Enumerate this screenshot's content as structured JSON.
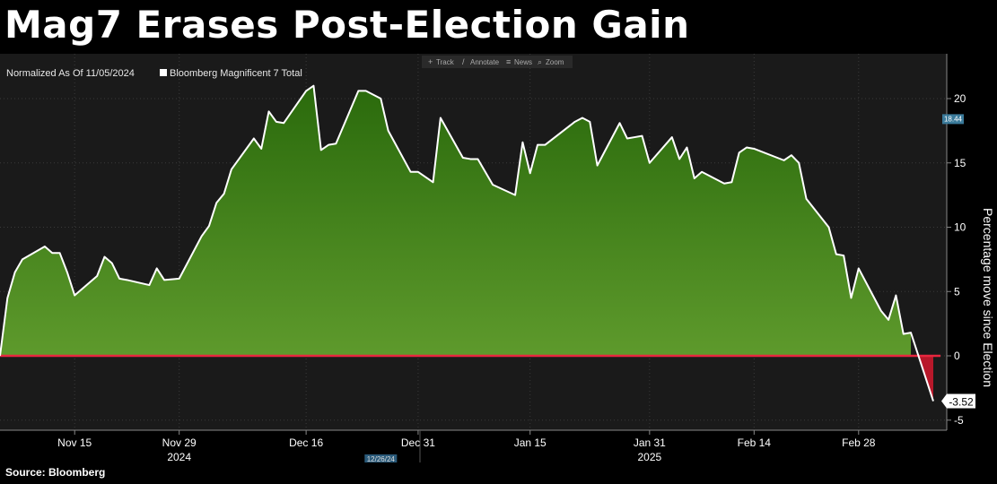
{
  "headline": "Mag7 Erases Post-Election Gain",
  "source": "Source: Bloomberg",
  "toolbar": [
    {
      "icon": "track-icon",
      "label": "Track"
    },
    {
      "icon": "annotate-icon",
      "label": "Annotate"
    },
    {
      "icon": "news-icon",
      "label": "News"
    },
    {
      "icon": "zoom-icon",
      "label": "Zoom"
    }
  ],
  "colors": {
    "background": "#000000",
    "plot_background": "#1a1a1a",
    "area_top": "#2a6a0c",
    "area_bottom": "#5e9a2c",
    "negative_fill": "#b8182a",
    "zero_line": "#e8273f",
    "series_line": "#ffffff"
  },
  "chart_data": {
    "type": "area",
    "title": "Mag7 Erases Post-Election Gain",
    "subtitle": "Normalized As Of 11/05/2024",
    "ylabel": "Percentage move since Election",
    "ylim": [
      -5.5,
      23
    ],
    "yticks": [
      -5,
      0,
      5,
      10,
      15,
      20
    ],
    "y_axis_side": "right",
    "grid": true,
    "legend_position": "top-left",
    "xlim": [
      "2024-11-05",
      "2025-03-10"
    ],
    "xticks": [
      {
        "date": "2024-11-15",
        "label": "Nov 15"
      },
      {
        "date": "2024-11-29",
        "label": "Nov 29"
      },
      {
        "date": "2024-12-16",
        "label": "Dec 16"
      },
      {
        "date": "2024-12-31",
        "label": "Dec 31"
      },
      {
        "date": "2025-01-15",
        "label": "Jan 15"
      },
      {
        "date": "2025-01-31",
        "label": "Jan 31"
      },
      {
        "date": "2025-02-14",
        "label": "Feb 14"
      },
      {
        "date": "2025-02-28",
        "label": "Feb 28"
      }
    ],
    "year_labels": [
      {
        "date": "2024-11-29",
        "label": "2024"
      },
      {
        "date": "2025-01-31",
        "label": "2025"
      }
    ],
    "cursor_label": {
      "date": "2024-12-26",
      "label": "12/26/24"
    },
    "series": [
      {
        "name": "Bloomberg Magnificent 7 Total",
        "x": [
          "2024-11-05",
          "2024-11-06",
          "2024-11-07",
          "2024-11-08",
          "2024-11-11",
          "2024-11-12",
          "2024-11-13",
          "2024-11-14",
          "2024-11-15",
          "2024-11-18",
          "2024-11-19",
          "2024-11-20",
          "2024-11-21",
          "2024-11-22",
          "2024-11-25",
          "2024-11-26",
          "2024-11-27",
          "2024-11-29",
          "2024-12-02",
          "2024-12-03",
          "2024-12-04",
          "2024-12-05",
          "2024-12-06",
          "2024-12-09",
          "2024-12-10",
          "2024-12-11",
          "2024-12-12",
          "2024-12-13",
          "2024-12-16",
          "2024-12-17",
          "2024-12-18",
          "2024-12-19",
          "2024-12-20",
          "2024-12-23",
          "2024-12-24",
          "2024-12-26",
          "2024-12-27",
          "2024-12-30",
          "2024-12-31",
          "2025-01-02",
          "2025-01-03",
          "2025-01-06",
          "2025-01-07",
          "2025-01-08",
          "2025-01-10",
          "2025-01-13",
          "2025-01-14",
          "2025-01-15",
          "2025-01-16",
          "2025-01-17",
          "2025-01-21",
          "2025-01-22",
          "2025-01-23",
          "2025-01-24",
          "2025-01-27",
          "2025-01-28",
          "2025-01-29",
          "2025-01-30",
          "2025-01-31",
          "2025-02-03",
          "2025-02-04",
          "2025-02-05",
          "2025-02-06",
          "2025-02-07",
          "2025-02-10",
          "2025-02-11",
          "2025-02-12",
          "2025-02-13",
          "2025-02-14",
          "2025-02-18",
          "2025-02-19",
          "2025-02-20",
          "2025-02-21",
          "2025-02-24",
          "2025-02-25",
          "2025-02-26",
          "2025-02-27",
          "2025-02-28",
          "2025-03-03",
          "2025-03-04",
          "2025-03-05",
          "2025-03-06",
          "2025-03-07",
          "2025-03-10"
        ],
        "values": [
          0.0,
          4.5,
          6.5,
          7.5,
          8.5,
          8.0,
          8.0,
          6.5,
          4.7,
          6.2,
          7.7,
          7.2,
          6.0,
          5.9,
          5.5,
          6.8,
          5.9,
          6.0,
          9.3,
          10.1,
          11.9,
          12.6,
          14.5,
          16.9,
          16.1,
          19.0,
          18.2,
          18.1,
          20.6,
          21.0,
          16.0,
          16.4,
          16.5,
          20.6,
          20.6,
          20.0,
          17.5,
          14.3,
          14.3,
          13.5,
          18.5,
          15.4,
          15.3,
          15.3,
          13.3,
          12.5,
          16.6,
          14.2,
          16.4,
          16.4,
          18.2,
          18.5,
          18.2,
          14.8,
          18.1,
          16.9,
          17.0,
          17.1,
          15.0,
          17.0,
          15.3,
          16.2,
          13.8,
          14.3,
          13.4,
          13.5,
          15.8,
          16.2,
          16.1,
          15.2,
          15.6,
          15.0,
          12.2,
          10.0,
          7.9,
          7.8,
          4.5,
          6.8,
          3.5,
          2.8,
          4.7,
          1.7,
          1.8,
          -3.52
        ]
      }
    ],
    "annotations": [
      {
        "text": "18.44",
        "y": 18.44
      },
      {
        "text": "-3.52",
        "y": -3.52
      }
    ]
  }
}
